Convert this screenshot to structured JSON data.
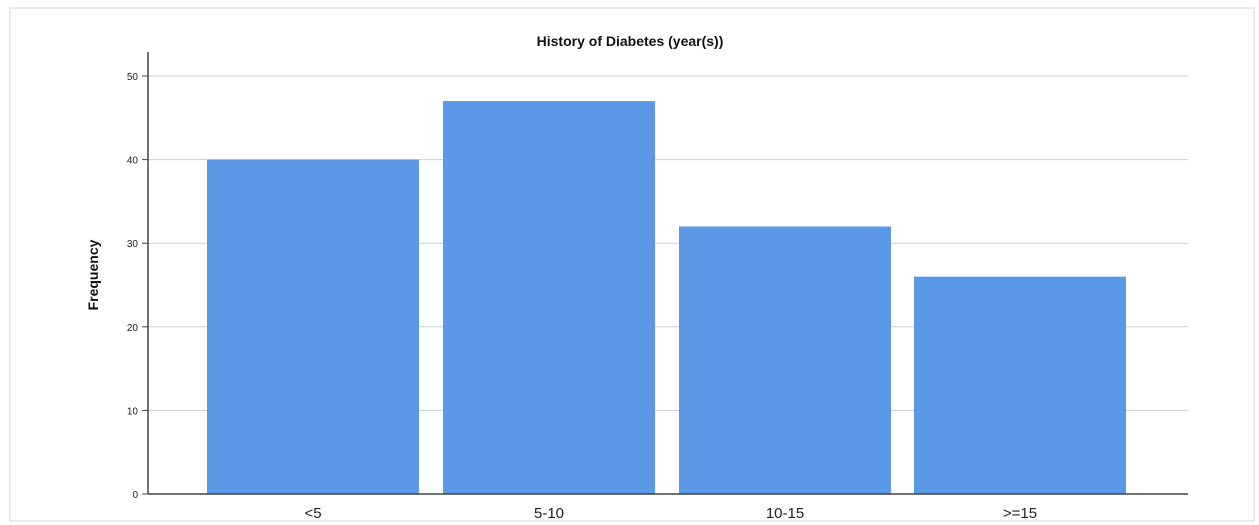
{
  "chart_data": {
    "type": "bar",
    "title": "History of Diabetes (year(s))",
    "xlabel": "",
    "ylabel": "Frequency",
    "categories": [
      "<5",
      "5-10",
      "10-15",
      ">=15"
    ],
    "values": [
      40,
      47,
      32,
      26
    ],
    "ylim": [
      0,
      50
    ],
    "yticks": [
      0,
      10,
      20,
      30,
      40,
      50
    ],
    "grid": true,
    "bar_color": "#5b98e6"
  }
}
